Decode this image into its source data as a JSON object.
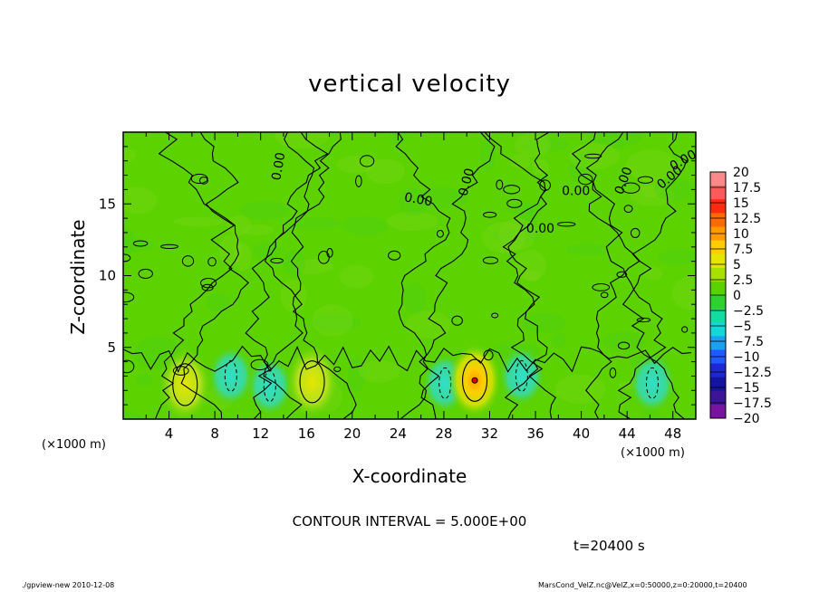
{
  "chart_data": {
    "type": "heatmap",
    "title": "vertical velocity",
    "xlabel": "X-coordinate",
    "ylabel": "Z-coordinate",
    "x_unit_label": "(×1000 m)",
    "x_ticks": [
      "4",
      "8",
      "12",
      "16",
      "20",
      "24",
      "28",
      "32",
      "36",
      "40",
      "44",
      "48"
    ],
    "y_ticks": [
      "5",
      "10",
      "15"
    ],
    "xlim": [
      0,
      50
    ],
    "ylim": [
      0,
      20
    ],
    "contour_labels": [
      "0.00",
      "0.00",
      "0.00",
      "0.00",
      "0.00",
      "0.00",
      "0.00",
      "0.00"
    ],
    "colorbar": {
      "ticks": [
        "20",
        "17.5",
        "15",
        "12.5",
        "10",
        "7.5",
        "5",
        "2.5",
        "0",
        "−2.5",
        "−5",
        "−7.5",
        "−10",
        "−12.5",
        "−15",
        "−17.5",
        "−20"
      ],
      "colors": [
        "#fa8a8a",
        "#fa5a5a",
        "#ff2a10",
        "#ff6a00",
        "#ff9b00",
        "#ffcd00",
        "#e5e600",
        "#a8e100",
        "#5ad200",
        "#2ed22e",
        "#14dca0",
        "#14d7d7",
        "#1ea0f0",
        "#1e5aff",
        "#1e28d2",
        "#1414a0",
        "#3c1496",
        "#7814a0"
      ]
    },
    "features": [
      {
        "x": 5.4,
        "z": 2.4,
        "w": 6.5,
        "type": "updraft"
      },
      {
        "x": 9.4,
        "z": 3.0,
        "w": -3.0,
        "type": "downdraft"
      },
      {
        "x": 12.8,
        "z": 2.3,
        "w": -4.0,
        "type": "downdraft"
      },
      {
        "x": 16.5,
        "z": 2.6,
        "w": 5.5,
        "type": "updraft"
      },
      {
        "x": 28.1,
        "z": 2.5,
        "w": -3.5,
        "type": "downdraft"
      },
      {
        "x": 30.7,
        "z": 2.7,
        "w": 8.5,
        "type": "updraft"
      },
      {
        "x": 34.8,
        "z": 3.0,
        "w": -3.0,
        "type": "downdraft"
      },
      {
        "x": 46.2,
        "z": 2.5,
        "w": -3.0,
        "type": "downdraft"
      }
    ],
    "contour_interval": "CONTOUR INTERVAL = 5.000E+00",
    "time": "t=20400  s"
  },
  "footer": {
    "left": "./gpview-new   2010-12-08",
    "right": "MarsCond_VelZ.nc@VelZ,x=0:50000,z=0:20000,t=20400"
  }
}
